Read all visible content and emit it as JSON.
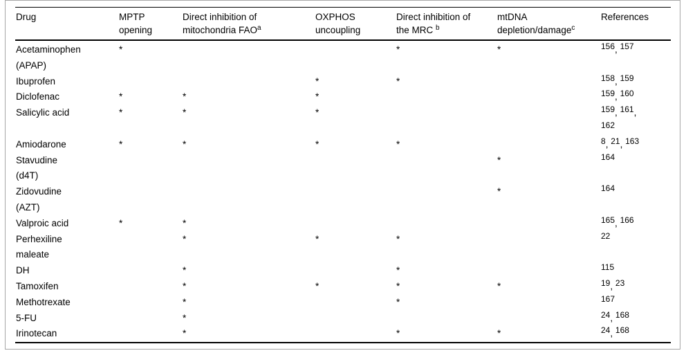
{
  "table": {
    "star_symbol": "*",
    "columns": [
      {
        "label": "Drug",
        "sup": ""
      },
      {
        "label": "MPTP\nopening",
        "sup": ""
      },
      {
        "label": "Direct inhibition of\nmitochondria FAO",
        "sup": "a"
      },
      {
        "label": "OXPHOS\nuncoupling",
        "sup": ""
      },
      {
        "label": "Direct inhibition of\nthe MRC ",
        "sup": "b"
      },
      {
        "label": "mtDNA\ndepletion/damage",
        "sup": "c"
      },
      {
        "label": "References",
        "sup": ""
      }
    ],
    "rows": [
      {
        "drug": "Acetaminophen\n(APAP)",
        "mptp_opening": "*",
        "fao_inhibition": "",
        "oxphos_uncoupling": "",
        "mrc_inhibition": "*",
        "mtdna_depletion": "*",
        "references": [
          "156",
          "157"
        ],
        "refs_per_line": 0
      },
      {
        "drug": "Ibuprofen",
        "mptp_opening": "",
        "fao_inhibition": "",
        "oxphos_uncoupling": "*",
        "mrc_inhibition": "*",
        "mtdna_depletion": "",
        "references": [
          "158",
          "159"
        ],
        "refs_per_line": 0
      },
      {
        "drug": "Diclofenac",
        "mptp_opening": "*",
        "fao_inhibition": "*",
        "oxphos_uncoupling": "*",
        "mrc_inhibition": "",
        "mtdna_depletion": "",
        "references": [
          "159",
          "160"
        ],
        "refs_per_line": 0
      },
      {
        "drug": "Salicylic acid",
        "mptp_opening": "*",
        "fao_inhibition": "*",
        "oxphos_uncoupling": "*",
        "mrc_inhibition": "",
        "mtdna_depletion": "",
        "references": [
          "159",
          "161",
          "162"
        ],
        "refs_per_line": 2
      },
      {
        "drug": "Amiodarone",
        "mptp_opening": "*",
        "fao_inhibition": "*",
        "oxphos_uncoupling": "*",
        "mrc_inhibition": "*",
        "mtdna_depletion": "",
        "references": [
          "8",
          "21",
          "163"
        ],
        "refs_per_line": 0
      },
      {
        "drug": "Stavudine\n(d4T)",
        "mptp_opening": "",
        "fao_inhibition": "",
        "oxphos_uncoupling": "",
        "mrc_inhibition": "",
        "mtdna_depletion": "*",
        "references": [
          "164"
        ],
        "refs_per_line": 0
      },
      {
        "drug": "Zidovudine\n(AZT)",
        "mptp_opening": "",
        "fao_inhibition": "",
        "oxphos_uncoupling": "",
        "mrc_inhibition": "",
        "mtdna_depletion": "*",
        "references": [
          "164"
        ],
        "refs_per_line": 0
      },
      {
        "drug": "Valproic acid",
        "mptp_opening": "*",
        "fao_inhibition": "*",
        "oxphos_uncoupling": "",
        "mrc_inhibition": "",
        "mtdna_depletion": "",
        "references": [
          "165",
          "166"
        ],
        "refs_per_line": 0
      },
      {
        "drug": "Perhexiline\nmaleate",
        "mptp_opening": "",
        "fao_inhibition": "*",
        "oxphos_uncoupling": "*",
        "mrc_inhibition": "*",
        "mtdna_depletion": "",
        "references": [
          "22"
        ],
        "refs_per_line": 0
      },
      {
        "drug": "DH",
        "mptp_opening": "",
        "fao_inhibition": "*",
        "oxphos_uncoupling": "",
        "mrc_inhibition": "*",
        "mtdna_depletion": "",
        "references": [
          "115"
        ],
        "refs_per_line": 0
      },
      {
        "drug": "Tamoxifen",
        "mptp_opening": "",
        "fao_inhibition": "*",
        "oxphos_uncoupling": "*",
        "mrc_inhibition": "*",
        "mtdna_depletion": "*",
        "references": [
          "19",
          "23"
        ],
        "refs_per_line": 0
      },
      {
        "drug": "Methotrexate",
        "mptp_opening": "",
        "fao_inhibition": "*",
        "oxphos_uncoupling": "",
        "mrc_inhibition": "*",
        "mtdna_depletion": "",
        "references": [
          "167"
        ],
        "refs_per_line": 0
      },
      {
        "drug": "5-FU",
        "mptp_opening": "",
        "fao_inhibition": "*",
        "oxphos_uncoupling": "",
        "mrc_inhibition": "",
        "mtdna_depletion": "",
        "references": [
          "24",
          "168"
        ],
        "refs_per_line": 0
      },
      {
        "drug": "Irinotecan",
        "mptp_opening": "",
        "fao_inhibition": "*",
        "oxphos_uncoupling": "",
        "mrc_inhibition": "*",
        "mtdna_depletion": "*",
        "references": [
          "24",
          "168"
        ],
        "refs_per_line": 0
      }
    ]
  }
}
